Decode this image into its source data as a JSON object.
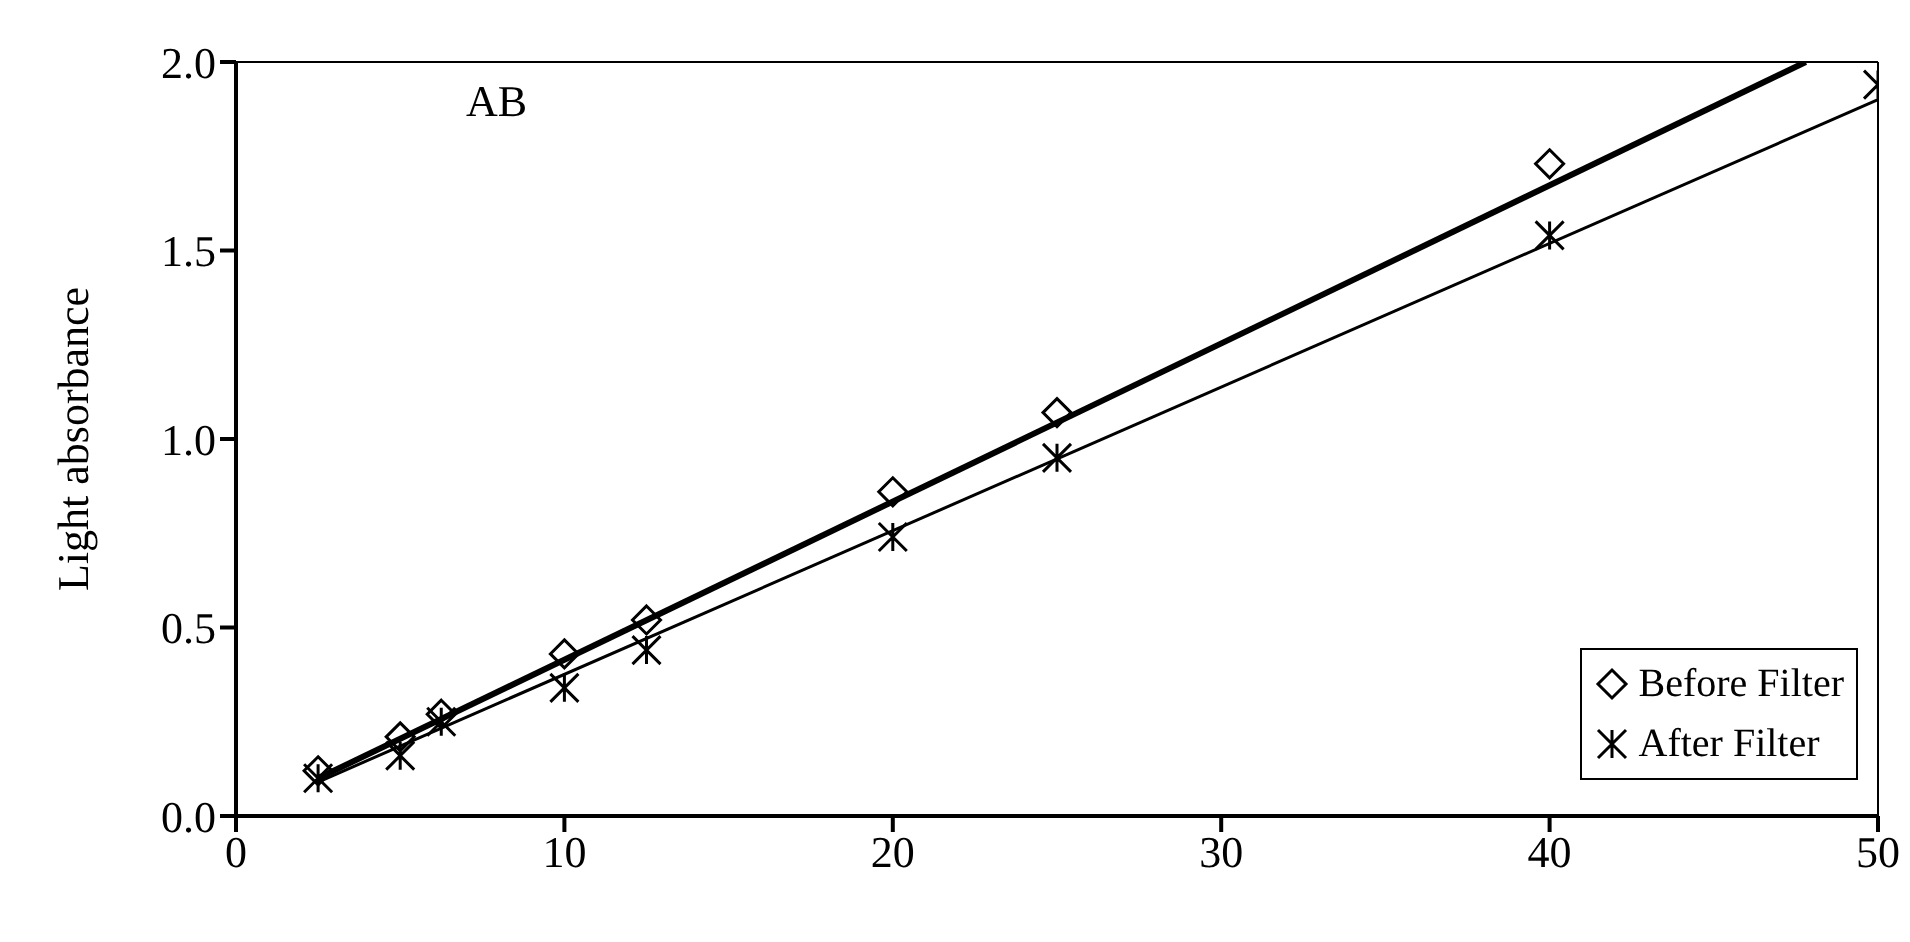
{
  "chart_data": {
    "type": "scatter",
    "ylabel": "Light absorbance",
    "annotations": [
      "AB"
    ],
    "xlim": [
      0,
      50
    ],
    "xticks": [
      0,
      10,
      20,
      30,
      40,
      50
    ],
    "ylim": [
      0,
      2
    ],
    "yticks": [
      {
        "value": 0,
        "label": "0.0"
      },
      {
        "value": 0.5,
        "label": "0.5"
      },
      {
        "value": 1,
        "label": "1.0"
      },
      {
        "value": 1.5,
        "label": "1.5"
      },
      {
        "value": 2,
        "label": "2.0"
      }
    ],
    "legend": "bottom right",
    "series": [
      {
        "name": "Before Filter",
        "color": "#000000",
        "marker": "diamond",
        "x": [
          2.5,
          5,
          6.25,
          10,
          12.5,
          20,
          25,
          40
        ],
        "values": [
          0.12,
          0.21,
          0.27,
          0.43,
          0.52,
          0.86,
          1.07,
          1.73
        ]
      },
      {
        "name": "After Filter",
        "color": "#000000",
        "marker": "cross",
        "x": [
          2.5,
          5,
          6.25,
          10,
          12.5,
          20,
          25,
          40,
          50
        ],
        "values": [
          0.1,
          0.16,
          0.25,
          0.34,
          0.44,
          0.74,
          0.95,
          1.54,
          1.94
        ]
      },
      {
        "type": "line",
        "color": "#000000",
        "marker": "none",
        "line_style": "solid",
        "x": [
          2.5,
          47.8
        ],
        "values": [
          0.1,
          2.0
        ]
      },
      {
        "type": "line",
        "color": "#000000",
        "marker": "none",
        "line_style": "solid",
        "x": [
          2.5,
          50
        ],
        "values": [
          0.09,
          1.9
        ]
      }
    ]
  }
}
